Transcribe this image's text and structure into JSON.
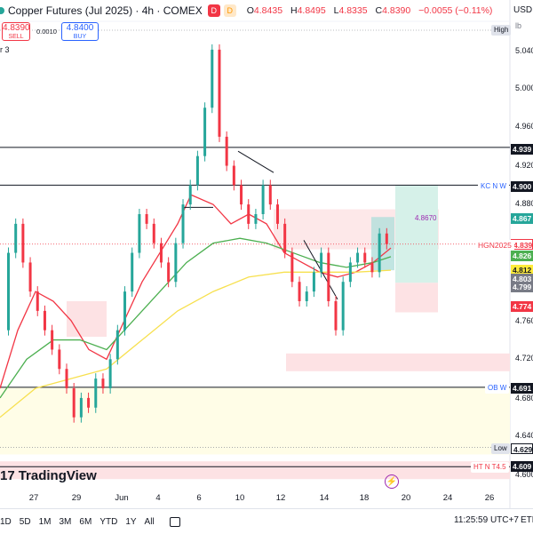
{
  "header": {
    "symbol": "Copper Futures (Jul 2025) · 4h · COMEX",
    "badge1": "D",
    "badge2": "D",
    "ohlc": [
      {
        "k": "O",
        "v": "4.8435"
      },
      {
        "k": "H",
        "v": "4.8495"
      },
      {
        "k": "L",
        "v": "4.8335"
      },
      {
        "k": "C",
        "v": "4.8390"
      },
      {
        "k": "",
        "v": "−0.0055 (−0.11%)"
      }
    ]
  },
  "trade": {
    "sell_price": "4.8390",
    "sell_label": "SELL",
    "spread": "0.0010",
    "buy_price": "4.8400",
    "buy_label": "BUY"
  },
  "indicator_label": "r 3",
  "price_axis": {
    "currency": "USD",
    "unit": "lb",
    "ticks": [
      "5.040",
      "5.000",
      "4.960",
      "4.920",
      "4.880",
      "4.760",
      "4.720",
      "4.680",
      "4.640",
      "4.600"
    ]
  },
  "price_labels": [
    {
      "text": "4.939",
      "bg": "#131722",
      "fg": "#ffffff"
    },
    {
      "text": "4.900",
      "bg": "#131722",
      "fg": "#ffffff"
    },
    {
      "text": "4.867",
      "bg": "#26a69a",
      "fg": "#ffffff"
    },
    {
      "text": "4.839",
      "bg": "#ffffff",
      "fg": "#f23645"
    },
    {
      "text": "4.826",
      "bg": "#4caf50",
      "fg": "#ffffff"
    },
    {
      "text": "4.812",
      "bg": "#ffeb3b",
      "fg": "#131722"
    },
    {
      "text": "4.803",
      "bg": "#787b86",
      "fg": "#ffffff"
    },
    {
      "text": "4.799",
      "bg": "#787b86",
      "fg": "#ffffff"
    },
    {
      "text": "4.774",
      "bg": "#f23645",
      "fg": "#ffffff"
    },
    {
      "text": "4.691",
      "bg": "#131722",
      "fg": "#ffffff"
    },
    {
      "text": "4.629",
      "bg": "#ffffff",
      "fg": "#131722"
    },
    {
      "text": "4.609",
      "bg": "#131722",
      "fg": "#ffffff"
    }
  ],
  "line_tags": {
    "high": "High",
    "low": "Low",
    "kc": "KC N W",
    "ob": "OB W",
    "ht": "HT N T4.5",
    "symbol_tag": "HGN2025",
    "target": "4.8670"
  },
  "dates": [
    "27",
    "29",
    "Jun",
    "4",
    "6",
    "10",
    "12",
    "14",
    "18",
    "20",
    "24",
    "26"
  ],
  "logo_text": "TradingView",
  "timeframes": [
    "1D",
    "5D",
    "1M",
    "3M",
    "6M",
    "YTD",
    "1Y",
    "All"
  ],
  "clock": "11:25:59 UTC+7",
  "session": "ETH",
  "colors": {
    "up": "#26a69a",
    "down": "#f23645",
    "ema_red": "#f23645",
    "ema_green": "#4caf50",
    "ema_yellow": "#ffeb3b"
  }
}
